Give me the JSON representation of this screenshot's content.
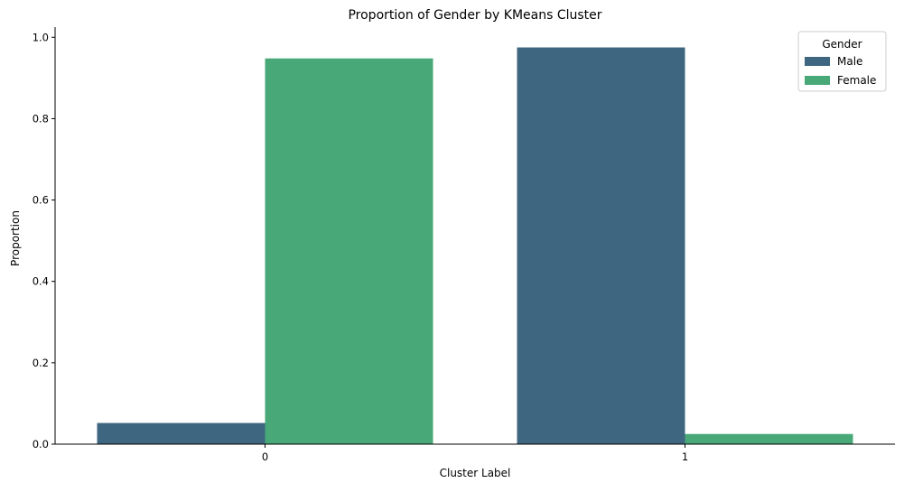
{
  "chart_data": {
    "type": "bar",
    "title": "Proportion of Gender by KMeans Cluster",
    "xlabel": "Cluster Label",
    "ylabel": "Proportion",
    "categories": [
      "0",
      "1"
    ],
    "series": [
      {
        "name": "Male",
        "values": [
          0.052,
          0.975
        ],
        "color": "#3e6680"
      },
      {
        "name": "Female",
        "values": [
          0.948,
          0.025
        ],
        "color": "#48a878"
      }
    ],
    "ylim": [
      0,
      1.025
    ],
    "yticks": [
      0.0,
      0.2,
      0.4,
      0.6,
      0.8,
      1.0
    ],
    "ytick_labels": [
      "0.0",
      "0.2",
      "0.4",
      "0.6",
      "0.8",
      "1.0"
    ],
    "grid": false,
    "legend": {
      "title": "Gender",
      "position": "top-right"
    }
  }
}
